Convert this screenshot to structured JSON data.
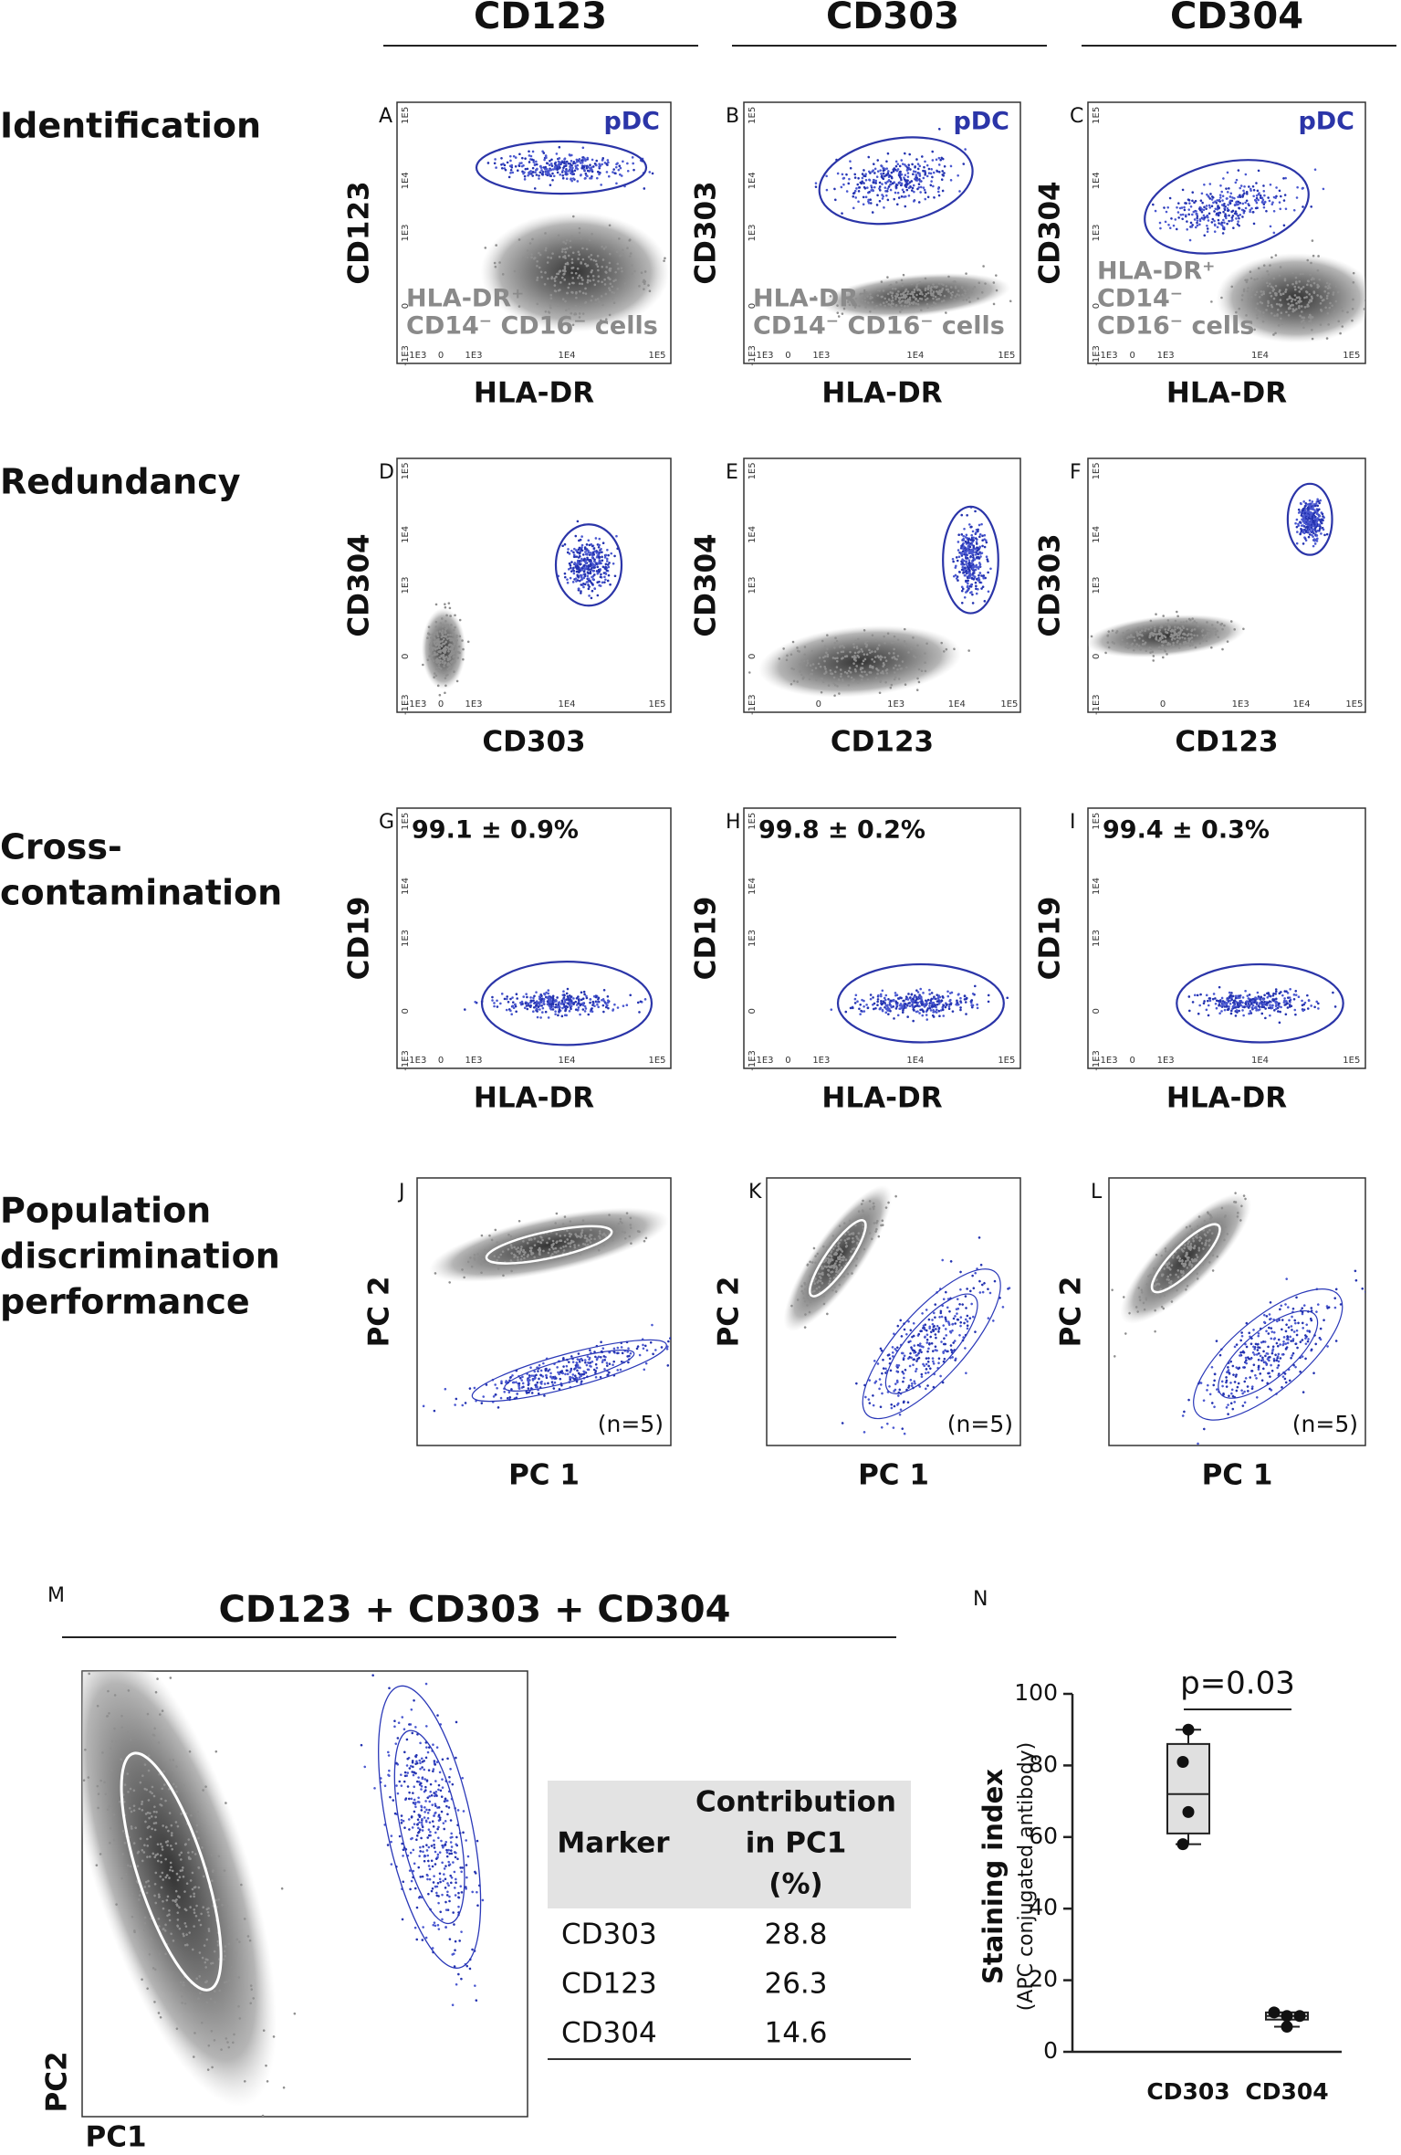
{
  "column_headers": [
    "CD123",
    "CD303",
    "CD304"
  ],
  "row_labels": [
    [
      "Identification"
    ],
    [
      "Redundancy"
    ],
    [
      "Cross-",
      "contamination"
    ],
    [
      "Population",
      "discrimination",
      "performance"
    ]
  ],
  "panels": [
    {
      "letter": "A",
      "y_label": "CD123",
      "x_label": "HLA-DR",
      "xticks": [
        "-1E3",
        "0",
        "1E3",
        "1E4",
        "1E5"
      ],
      "yticks": [
        "1E5",
        "1E4",
        "1E3",
        "0",
        "-1E3"
      ],
      "gate_label": "pDC",
      "population_label": [
        "HLA-DR⁺",
        "CD14⁻ CD16⁻ cells"
      ]
    },
    {
      "letter": "B",
      "y_label": "CD303",
      "x_label": "HLA-DR",
      "xticks": [
        "-1E3",
        "0",
        "1E3",
        "1E4",
        "1E5"
      ],
      "yticks": [
        "1E5",
        "1E4",
        "1E3",
        "0",
        "-1E3"
      ],
      "gate_label": "pDC",
      "population_label": [
        "HLA-DR⁺",
        "CD14⁻ CD16⁻ cells"
      ]
    },
    {
      "letter": "C",
      "y_label": "CD304",
      "x_label": "HLA-DR",
      "xticks": [
        "-1E3",
        "0",
        "1E3",
        "1E4",
        "1E5"
      ],
      "yticks": [
        "1E5",
        "1E4",
        "1E3",
        "0",
        "-1E3"
      ],
      "gate_label": "pDC",
      "population_label": [
        "HLA-DR⁺",
        "CD14⁻",
        "CD16⁻ cells"
      ]
    },
    {
      "letter": "D",
      "y_label": "CD304",
      "x_label": "CD303",
      "xticks": [
        "-1E3",
        "0",
        "1E3",
        "1E4",
        "1E5"
      ],
      "yticks": [
        "1E5",
        "1E4",
        "1E3",
        "0",
        "-1E3"
      ]
    },
    {
      "letter": "E",
      "y_label": "CD304",
      "x_label": "CD123",
      "xticks": [
        "0",
        "1E3",
        "1E4",
        "1E5"
      ],
      "yticks": [
        "1E5",
        "1E4",
        "1E3",
        "0",
        "-1E3"
      ]
    },
    {
      "letter": "F",
      "y_label": "CD303",
      "x_label": "CD123",
      "xticks": [
        "0",
        "1E3",
        "1E4",
        "1E5"
      ],
      "yticks": [
        "1E5",
        "1E4",
        "1E3",
        "0",
        "-1E3"
      ]
    },
    {
      "letter": "G",
      "y_label": "CD19",
      "x_label": "HLA-DR",
      "xticks": [
        "-1E3",
        "0",
        "1E3",
        "1E4",
        "1E5"
      ],
      "yticks": [
        "1E5",
        "1E4",
        "1E3",
        "0",
        "-1E3"
      ],
      "annotation": "99.1 ± 0.9%"
    },
    {
      "letter": "H",
      "y_label": "CD19",
      "x_label": "HLA-DR",
      "xticks": [
        "-1E3",
        "0",
        "1E3",
        "1E4",
        "1E5"
      ],
      "yticks": [
        "1E5",
        "1E4",
        "1E3",
        "0",
        "-1E3"
      ],
      "annotation": "99.8 ± 0.2%"
    },
    {
      "letter": "I",
      "y_label": "CD19",
      "x_label": "HLA-DR",
      "xticks": [
        "-1E3",
        "0",
        "1E3",
        "1E4",
        "1E5"
      ],
      "yticks": [
        "1E5",
        "1E4",
        "1E3",
        "0",
        "-1E3"
      ],
      "annotation": "99.4 ± 0.3%"
    },
    {
      "letter": "J",
      "y_label": "PC 2",
      "x_label": "PC 1",
      "annotation": "(n=5)"
    },
    {
      "letter": "K",
      "y_label": "PC 2",
      "x_label": "PC 1",
      "annotation": "(n=5)"
    },
    {
      "letter": "L",
      "y_label": "PC 2",
      "x_label": "PC 1",
      "annotation": "(n=5)"
    }
  ],
  "panel_m": {
    "letter": "M",
    "title": "CD123 + CD303 + CD304",
    "y_label": "PC2",
    "x_label": "PC1",
    "table": {
      "header": [
        "Marker",
        [
          "Contribution",
          "in PC1",
          "(%)"
        ]
      ],
      "rows": [
        [
          "CD303",
          "28.8"
        ],
        [
          "CD123",
          "26.3"
        ],
        [
          "CD304",
          "14.6"
        ]
      ]
    }
  },
  "chart_data": {
    "type": "box",
    "letter": "N",
    "y_label": [
      "Staining index",
      "(APC conjugated antibody)"
    ],
    "categories": [
      "CD303",
      "CD304"
    ],
    "boxes": [
      {
        "min": 58,
        "q1": 61,
        "median": 72,
        "q3": 86,
        "max": 90
      },
      {
        "min": 7,
        "q1": 9,
        "median": 10,
        "q3": 11,
        "max": 11
      }
    ],
    "points": [
      [
        90,
        81,
        67,
        58
      ],
      [
        11,
        10,
        10,
        7
      ]
    ],
    "annotation": "p=0.03",
    "ylim": [
      0,
      100
    ],
    "yticks": [
      0,
      20,
      40,
      60,
      80,
      100
    ],
    "box_color": "#e0e0e0"
  }
}
